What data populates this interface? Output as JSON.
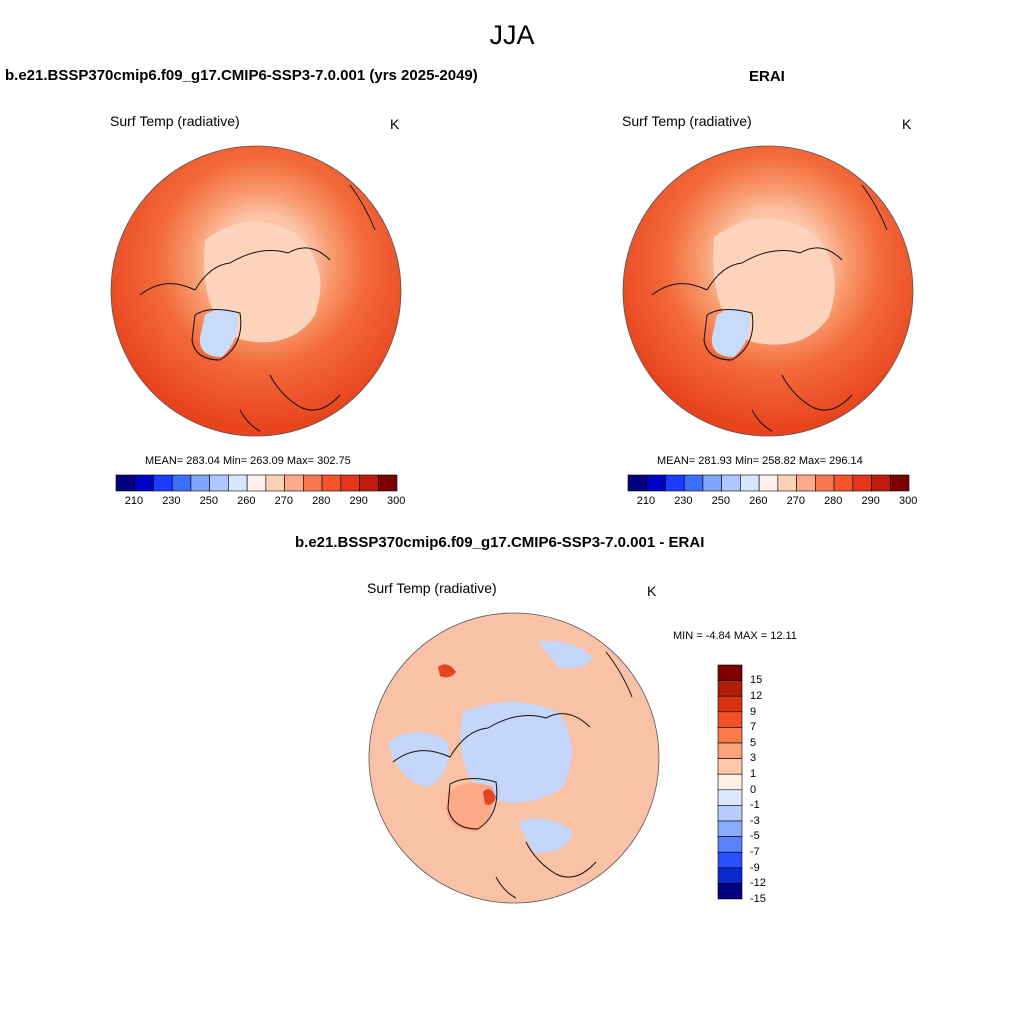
{
  "figure_title": "JJA",
  "panels": [
    {
      "title": "b.e21.BSSP370cmip6.f09_g17.CMIP6-SSP3-7.0.001 (yrs 2025-2049)",
      "variable": "Surf Temp (radiative)",
      "units": "K",
      "stats": "MEAN= 283.04  Min= 263.09  Max= 302.75"
    },
    {
      "title": "ERAI",
      "variable": "Surf Temp (radiative)",
      "units": "K",
      "stats": "MEAN= 281.93  Min= 258.82  Max= 296.14"
    },
    {
      "title": "b.e21.BSSP370cmip6.f09_g17.CMIP6-SSP3-7.0.001 - ERAI",
      "variable": "Surf Temp (radiative)",
      "units": "K",
      "stats": "MIN =  -4.84 MAX =  12.11"
    }
  ],
  "abs_colorbar": {
    "tick_labels": [
      "210",
      "230",
      "250",
      "260",
      "270",
      "280",
      "290",
      "300"
    ],
    "colors": [
      "#00007f",
      "#0000c8",
      "#1e3cff",
      "#3c6eff",
      "#7ea6ff",
      "#b0c8ff",
      "#d8e6ff",
      "#fff0e8",
      "#fdd0b8",
      "#fcaa88",
      "#fa7850",
      "#f5542d",
      "#e4361c",
      "#c01e0c",
      "#7f0000"
    ]
  },
  "diff_colorbar": {
    "tick_labels": [
      "15",
      "12",
      "9",
      "7",
      "5",
      "3",
      "1",
      "0",
      "-1",
      "-3",
      "-5",
      "-7",
      "-9",
      "-12",
      "-15"
    ],
    "colors": [
      "#7f0000",
      "#b01e08",
      "#d83212",
      "#f25028",
      "#fa7a4a",
      "#fca37c",
      "#fdc8ac",
      "#fff0e4",
      "#dce8fb",
      "#b8ccfd",
      "#8aaafe",
      "#5a82ff",
      "#2a50ff",
      "#0a28cc",
      "#000080"
    ]
  },
  "map_colors": {
    "warm_dark": "#e8431e",
    "warm_mid": "#f36a3a",
    "warm_light": "#f89a6e",
    "polar": "#fdd3bb",
    "ice": "#c9dbfb",
    "diff_pos": "#f9c2a6",
    "diff_neg": "#c4d6fb",
    "diff_strong_pos": "#e4451f"
  }
}
